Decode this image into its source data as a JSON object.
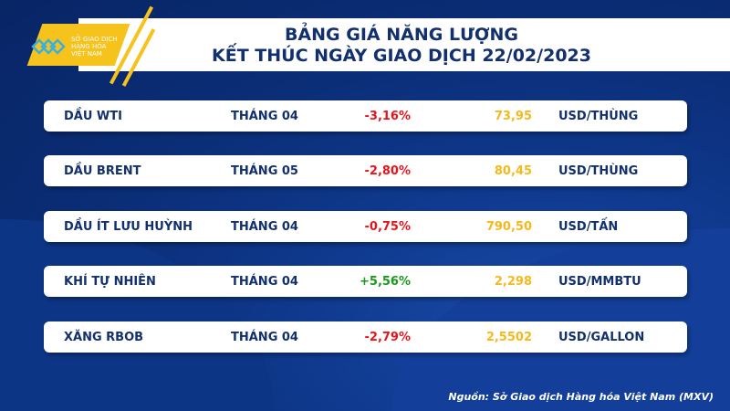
{
  "logo": {
    "text_line1": "SỞ GIAO DỊCH",
    "text_line2": "HÀNG HÓA",
    "text_line3": "VIỆT NAM",
    "brand_color": "#f6c21c"
  },
  "header": {
    "title_line1": "BẢNG GIÁ NĂNG LƯỢNG",
    "title_line2": "KẾT THÚC NGÀY GIAO DỊCH 22/02/2023"
  },
  "colors": {
    "negative": "#e8141c",
    "positive": "#1a9a1a",
    "price": "#f6b91c",
    "text": "#12306e"
  },
  "rows": [
    {
      "name": "DẦU WTI",
      "month": "THÁNG 04",
      "change": "-3,16%",
      "direction": "down",
      "price": "73,95",
      "unit": "USD/THÙNG"
    },
    {
      "name": "DẦU BRENT",
      "month": "THÁNG 05",
      "change": "-2,80%",
      "direction": "down",
      "price": "80,45",
      "unit": "USD/THÙNG"
    },
    {
      "name": "DẦU ÍT LƯU HUỲNH",
      "month": "THÁNG 04",
      "change": "-0,75%",
      "direction": "down",
      "price": "790,50",
      "unit": "USD/TẤN"
    },
    {
      "name": "KHÍ TỰ NHIÊN",
      "month": "THÁNG 04",
      "change": "+5,56%",
      "direction": "up",
      "price": "2,298",
      "unit": "USD/MMBTU"
    },
    {
      "name": "XĂNG RBOB",
      "month": "THÁNG 04",
      "change": "-2,79%",
      "direction": "down",
      "price": "2,5502",
      "unit": "USD/GALLON"
    }
  ],
  "footer": {
    "source": "Nguồn: Sở Giao dịch Hàng hóa Việt Nam (MXV)"
  }
}
